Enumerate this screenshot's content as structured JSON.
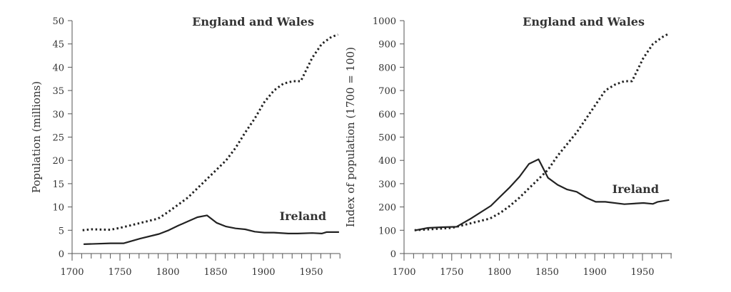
{
  "chart_data": [
    {
      "type": "line",
      "title": "",
      "xlabel": "",
      "ylabel": "Population (millions)",
      "xlim": [
        1700,
        1980
      ],
      "ylim": [
        0,
        50
      ],
      "xticks": [
        1700,
        1750,
        1800,
        1850,
        1900,
        1950
      ],
      "yticks": [
        0,
        5,
        10,
        15,
        20,
        25,
        30,
        35,
        40,
        45,
        50
      ],
      "grid": false,
      "series": [
        {
          "name": "England and Wales",
          "style": "dotted",
          "x": [
            1711,
            1720,
            1740,
            1750,
            1760,
            1780,
            1790,
            1801,
            1811,
            1821,
            1831,
            1841,
            1851,
            1861,
            1871,
            1881,
            1891,
            1901,
            1911,
            1921,
            1931,
            1939,
            1951,
            1961,
            1971,
            1978
          ],
          "y": [
            5,
            5.2,
            5.1,
            5.5,
            6,
            7,
            7.5,
            9,
            10.5,
            12,
            14,
            16,
            18,
            20,
            22.7,
            26,
            29,
            32.5,
            35,
            36.5,
            37,
            37,
            42,
            45,
            46.5,
            47
          ]
        },
        {
          "name": "Ireland",
          "style": "solid",
          "x": [
            1712,
            1725,
            1740,
            1754,
            1771,
            1791,
            1801,
            1811,
            1821,
            1831,
            1841,
            1851,
            1861,
            1871,
            1881,
            1891,
            1901,
            1911,
            1926,
            1936,
            1951,
            1961,
            1966,
            1979
          ],
          "y": [
            2,
            2.1,
            2.2,
            2.2,
            3.2,
            4.2,
            5,
            6,
            6.9,
            7.8,
            8.2,
            6.6,
            5.8,
            5.4,
            5.2,
            4.7,
            4.5,
            4.5,
            4.3,
            4.3,
            4.4,
            4.3,
            4.6,
            4.6
          ]
        }
      ]
    },
    {
      "type": "line",
      "title": "",
      "xlabel": "",
      "ylabel": "Index of population (1700 = 100)",
      "xlim": [
        1700,
        1980
      ],
      "ylim": [
        0,
        1000
      ],
      "xticks": [
        1700,
        1750,
        1800,
        1850,
        1900,
        1950
      ],
      "yticks": [
        0,
        100,
        200,
        300,
        400,
        500,
        600,
        700,
        800,
        900,
        1000
      ],
      "grid": false,
      "series": [
        {
          "name": "England and Wales",
          "style": "dotted",
          "x": [
            1711,
            1730,
            1750,
            1760,
            1780,
            1790,
            1801,
            1811,
            1821,
            1831,
            1841,
            1851,
            1861,
            1871,
            1881,
            1891,
            1901,
            1911,
            1921,
            1931,
            1939,
            1951,
            1961,
            1971,
            1978
          ],
          "y": [
            100,
            105,
            110,
            120,
            140,
            150,
            175,
            205,
            240,
            280,
            320,
            360,
            420,
            470,
            520,
            580,
            640,
            700,
            725,
            740,
            740,
            840,
            900,
            930,
            945
          ]
        },
        {
          "name": "Ireland",
          "style": "solid",
          "x": [
            1712,
            1725,
            1740,
            1755,
            1770,
            1791,
            1801,
            1811,
            1821,
            1831,
            1841,
            1851,
            1861,
            1871,
            1881,
            1891,
            1901,
            1911,
            1931,
            1951,
            1961,
            1966,
            1978
          ],
          "y": [
            100,
            110,
            113,
            115,
            150,
            205,
            245,
            285,
            330,
            385,
            405,
            325,
            295,
            275,
            265,
            240,
            222,
            222,
            212,
            217,
            213,
            222,
            230
          ]
        }
      ]
    }
  ]
}
